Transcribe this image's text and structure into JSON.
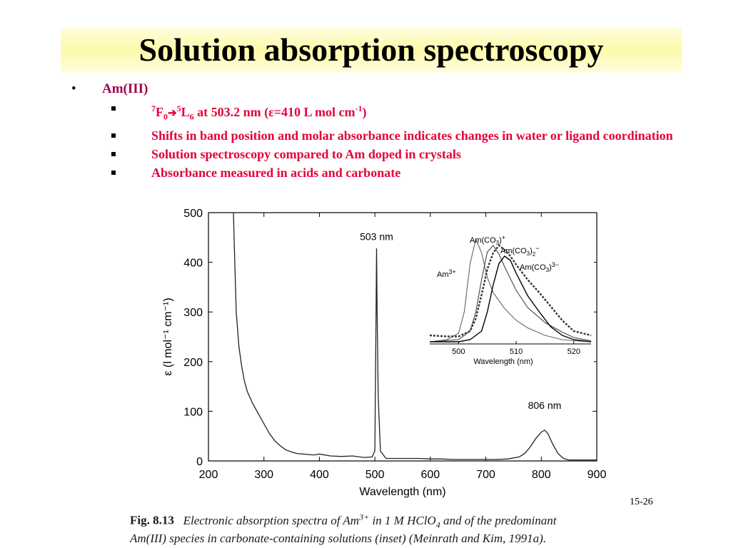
{
  "slide": {
    "title": "Solution absorption spectroscopy",
    "bullet_main": "Am(III)",
    "sub1_a": "7",
    "sub1_b": "F",
    "sub1_c": "0",
    "sub1_d": "5",
    "sub1_e": "L",
    "sub1_f": "6",
    "sub1_g": " at 503.2 nm (ε=410 L mol cm",
    "sub1_h": "-1",
    "sub1_i": ")",
    "sub2": "Shifts in band position and molar absorbance indicates changes in water or ligand coordination",
    "sub3": "Solution spectroscopy compared to Am doped in crystals",
    "sub4": "Absorbance measured in acids and carbonate",
    "slide_number": "15-26"
  },
  "caption": {
    "fig": "Fig. 8.13",
    "text1": "Electronic absorption spectra of Am",
    "sup1": "3+",
    "text2": " in 1 M HClO",
    "sub1": "4",
    "text3": " and of the predominant",
    "text4": "Am(III) species in carbonate-containing solutions (inset) (Meinrath and Kim, 1991a)."
  },
  "colors": {
    "title_bg": "#fdfaa8",
    "bullet_text": "#e5003a",
    "bullet_main": "#a0004e"
  },
  "chart_data": [
    {
      "type": "line",
      "xlabel": "Wavelength (nm)",
      "ylabel": "ε (l mol⁻¹ cm⁻¹)",
      "xlim": [
        200,
        900
      ],
      "ylim": [
        0,
        500
      ],
      "xticks": [
        "200",
        "300",
        "400",
        "500",
        "600",
        "700",
        "800",
        "900"
      ],
      "yticks": [
        "0",
        "100",
        "200",
        "300",
        "400",
        "500"
      ],
      "annotations": [
        {
          "text": "503 nm",
          "x": 503,
          "y": 445
        },
        {
          "text": "806 nm",
          "x": 806,
          "y": 105
        }
      ],
      "series": [
        {
          "x": [
            245,
            247,
            250,
            255,
            260,
            265,
            270,
            280,
            290,
            300,
            310,
            320,
            330,
            340,
            350,
            360,
            370,
            380,
            390,
            400,
            420,
            440,
            460,
            480,
            495,
            500,
            502,
            503,
            504,
            506,
            510,
            520,
            540,
            560,
            580,
            600,
            620,
            640,
            660,
            680,
            700,
            720,
            740,
            760,
            770,
            780,
            790,
            800,
            806,
            812,
            820,
            830,
            840,
            850,
            870,
            890,
            900
          ],
          "y": [
            500,
            420,
            300,
            230,
            190,
            160,
            140,
            115,
            95,
            75,
            55,
            40,
            30,
            22,
            18,
            15,
            14,
            13,
            12,
            14,
            10,
            9,
            10,
            7,
            8,
            20,
            280,
            428,
            300,
            130,
            20,
            5,
            5,
            5,
            5,
            4,
            4,
            3,
            3,
            3,
            3,
            3,
            4,
            8,
            15,
            28,
            45,
            58,
            62,
            55,
            35,
            15,
            5,
            2,
            2,
            2,
            2
          ]
        }
      ]
    },
    {
      "type": "line",
      "xlabel": "Wavelength (nm)",
      "xlim": [
        495,
        523
      ],
      "xticks": [
        "500",
        "510",
        "520"
      ],
      "series": [
        {
          "name": "Am3+",
          "x": [
            495,
            498,
            500,
            501,
            502,
            503,
            504,
            505,
            506,
            508,
            510,
            512,
            515,
            518,
            520,
            523
          ],
          "y": [
            0.02,
            0.04,
            0.1,
            0.3,
            0.75,
            0.98,
            0.85,
            0.62,
            0.48,
            0.33,
            0.22,
            0.15,
            0.08,
            0.04,
            0.03,
            0.02
          ]
        },
        {
          "name": "Am(CO3)+",
          "x": [
            495,
            500,
            502,
            503,
            504,
            505,
            506,
            507,
            508,
            510,
            512,
            515,
            518,
            520,
            523
          ],
          "y": [
            0.02,
            0.04,
            0.12,
            0.3,
            0.6,
            0.86,
            0.92,
            0.84,
            0.72,
            0.5,
            0.34,
            0.2,
            0.11,
            0.06,
            0.03
          ]
        },
        {
          "name": "Am(CO3)2-",
          "x": [
            495,
            498,
            500,
            502,
            503,
            504,
            505,
            506,
            507,
            508,
            509,
            510,
            512,
            514,
            516,
            518,
            520,
            523
          ],
          "y": [
            0.08,
            0.07,
            0.07,
            0.12,
            0.24,
            0.46,
            0.7,
            0.85,
            0.92,
            0.88,
            0.82,
            0.74,
            0.6,
            0.48,
            0.35,
            0.22,
            0.12,
            0.08
          ]
        },
        {
          "name": "Am(CO3)3 3-",
          "x": [
            495,
            500,
            502,
            504,
            505,
            506,
            507,
            508,
            509,
            510,
            512,
            514,
            516,
            518,
            520,
            523
          ],
          "y": [
            0.02,
            0.02,
            0.04,
            0.12,
            0.3,
            0.55,
            0.75,
            0.82,
            0.78,
            0.66,
            0.45,
            0.3,
            0.16,
            0.08,
            0.04,
            0.02
          ]
        }
      ]
    }
  ]
}
